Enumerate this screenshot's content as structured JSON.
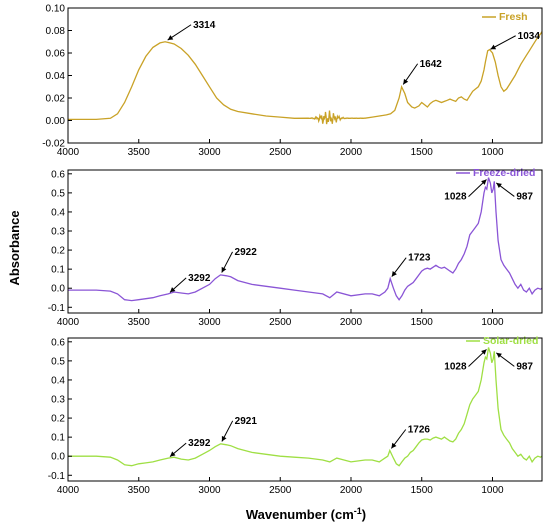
{
  "chart_data": [
    {
      "type": "line",
      "panel": "top",
      "legend": "Fresh",
      "color": "#c9a227",
      "xlim": [
        4000,
        650
      ],
      "ylim": [
        -0.02,
        0.1
      ],
      "xticks": [
        "4000",
        "3500",
        "3000",
        "2500",
        "2000",
        "1500",
        "1000"
      ],
      "yticks": [
        "-0.02",
        "0.00",
        "0.02",
        "0.04",
        "0.06",
        "0.08",
        "0.10"
      ],
      "ytick_values": [
        -0.02,
        0.0,
        0.02,
        0.04,
        0.06,
        0.08,
        0.1
      ],
      "series": [
        {
          "x": [
            4000,
            3800,
            3700,
            3650,
            3600,
            3550,
            3500,
            3450,
            3400,
            3350,
            3314,
            3280,
            3250,
            3200,
            3150,
            3100,
            3050,
            3000,
            2950,
            2900,
            2850,
            2800,
            2700,
            2600,
            2500,
            2400,
            2300,
            2200,
            2150,
            2100,
            2050,
            2000,
            1950,
            1900,
            1850,
            1800,
            1750,
            1720,
            1690,
            1660,
            1642,
            1620,
            1600,
            1570,
            1550,
            1520,
            1500,
            1480,
            1460,
            1440,
            1420,
            1400,
            1380,
            1360,
            1340,
            1320,
            1300,
            1280,
            1260,
            1240,
            1220,
            1200,
            1180,
            1160,
            1140,
            1120,
            1100,
            1080,
            1060,
            1050,
            1034,
            1020,
            1000,
            980,
            960,
            940,
            920,
            900,
            880,
            860,
            840,
            820,
            800,
            780,
            760,
            740,
            720,
            700,
            680,
            660,
            650
          ],
          "y": [
            0.001,
            0.001,
            0.002,
            0.006,
            0.016,
            0.03,
            0.045,
            0.057,
            0.065,
            0.069,
            0.07,
            0.069,
            0.068,
            0.064,
            0.058,
            0.05,
            0.04,
            0.03,
            0.02,
            0.014,
            0.01,
            0.008,
            0.006,
            0.004,
            0.003,
            0.002,
            0.002,
            0.002,
            0.002,
            0.002,
            0.002,
            0.002,
            0.002,
            0.003,
            0.003,
            0.004,
            0.005,
            0.006,
            0.009,
            0.02,
            0.03,
            0.024,
            0.016,
            0.012,
            0.011,
            0.013,
            0.016,
            0.014,
            0.012,
            0.015,
            0.017,
            0.018,
            0.017,
            0.016,
            0.017,
            0.018,
            0.019,
            0.018,
            0.017,
            0.02,
            0.021,
            0.019,
            0.018,
            0.022,
            0.026,
            0.028,
            0.03,
            0.035,
            0.045,
            0.052,
            0.062,
            0.063,
            0.06,
            0.052,
            0.04,
            0.03,
            0.026,
            0.028,
            0.032,
            0.036,
            0.04,
            0.045,
            0.05,
            0.054,
            0.058,
            0.062,
            0.066,
            0.07,
            0.074,
            0.077,
            0.079
          ]
        }
      ],
      "noise": {
        "from": 2300,
        "to": 1900,
        "center": 2160,
        "amp": 0.007
      },
      "annotations": [
        {
          "text": "3314",
          "x": 3314,
          "y": 0.07
        },
        {
          "text": "1642",
          "x": 1642,
          "y": 0.03
        },
        {
          "text": "1034",
          "x": 1034,
          "y": 0.062
        }
      ]
    },
    {
      "type": "line",
      "panel": "middle",
      "legend": "Freeze-dried",
      "color": "#8a55d6",
      "xlim": [
        4000,
        650
      ],
      "ylim": [
        -0.13,
        0.62
      ],
      "xticks": [
        "4000",
        "3500",
        "3000",
        "2500",
        "2000",
        "1500",
        "1000"
      ],
      "yticks": [
        "-0.1",
        "0.0",
        "0.1",
        "0.2",
        "0.3",
        "0.4",
        "0.5",
        "0.6"
      ],
      "ytick_values": [
        -0.1,
        0.0,
        0.1,
        0.2,
        0.3,
        0.4,
        0.5,
        0.6
      ],
      "series": [
        {
          "x": [
            4000,
            3800,
            3700,
            3650,
            3600,
            3550,
            3500,
            3450,
            3400,
            3350,
            3292,
            3250,
            3200,
            3150,
            3100,
            3050,
            3000,
            2960,
            2922,
            2880,
            2850,
            2800,
            2700,
            2600,
            2500,
            2400,
            2300,
            2200,
            2150,
            2100,
            2000,
            1900,
            1850,
            1800,
            1760,
            1740,
            1723,
            1700,
            1680,
            1660,
            1640,
            1620,
            1600,
            1580,
            1560,
            1540,
            1520,
            1500,
            1480,
            1460,
            1440,
            1420,
            1400,
            1380,
            1360,
            1340,
            1320,
            1300,
            1280,
            1260,
            1240,
            1220,
            1200,
            1180,
            1160,
            1140,
            1120,
            1100,
            1080,
            1060,
            1050,
            1040,
            1028,
            1015,
            1005,
            995,
            987,
            975,
            960,
            940,
            920,
            900,
            880,
            860,
            840,
            820,
            800,
            780,
            760,
            740,
            720,
            700,
            680,
            660,
            650
          ],
          "y": [
            -0.01,
            -0.01,
            -0.015,
            -0.03,
            -0.06,
            -0.065,
            -0.06,
            -0.055,
            -0.05,
            -0.04,
            -0.03,
            -0.02,
            -0.025,
            -0.03,
            -0.02,
            0.0,
            0.02,
            0.05,
            0.07,
            0.065,
            0.06,
            0.04,
            0.02,
            0.01,
            0.0,
            -0.01,
            -0.02,
            -0.03,
            -0.05,
            -0.02,
            -0.04,
            -0.03,
            -0.03,
            -0.04,
            -0.02,
            0.0,
            0.05,
            0.0,
            -0.04,
            -0.06,
            -0.04,
            -0.01,
            0.01,
            0.02,
            0.03,
            0.05,
            0.07,
            0.09,
            0.1,
            0.105,
            0.1,
            0.11,
            0.12,
            0.11,
            0.105,
            0.11,
            0.1,
            0.09,
            0.08,
            0.1,
            0.13,
            0.15,
            0.18,
            0.22,
            0.28,
            0.3,
            0.32,
            0.34,
            0.4,
            0.5,
            0.53,
            0.52,
            0.58,
            0.55,
            0.5,
            0.52,
            0.56,
            0.4,
            0.25,
            0.15,
            0.12,
            0.1,
            0.08,
            0.05,
            0.02,
            0.0,
            0.02,
            -0.01,
            -0.02,
            0.0,
            -0.03,
            -0.01,
            0.0,
            -0.005,
            0.0
          ]
        }
      ],
      "annotations": [
        {
          "text": "3292",
          "x": 3292,
          "y": -0.03
        },
        {
          "text": "2922",
          "x": 2922,
          "y": 0.07
        },
        {
          "text": "1723",
          "x": 1723,
          "y": 0.05
        },
        {
          "text": "1028",
          "x": 1028,
          "y": 0.58
        },
        {
          "text": "987",
          "x": 987,
          "y": 0.56
        }
      ]
    },
    {
      "type": "line",
      "panel": "bottom",
      "legend": "Solar-dried",
      "color": "#9fdf44",
      "xlim": [
        4000,
        650
      ],
      "ylim": [
        -0.13,
        0.62
      ],
      "xticks": [
        "4000",
        "3500",
        "3000",
        "2500",
        "2000",
        "1500",
        "1000"
      ],
      "yticks": [
        "-0.1",
        "0.0",
        "0.1",
        "0.2",
        "0.3",
        "0.4",
        "0.5",
        "0.6"
      ],
      "ytick_values": [
        -0.1,
        0.0,
        0.1,
        0.2,
        0.3,
        0.4,
        0.5,
        0.6
      ],
      "series": [
        {
          "x": [
            4000,
            3800,
            3700,
            3650,
            3600,
            3550,
            3500,
            3450,
            3400,
            3350,
            3292,
            3250,
            3200,
            3150,
            3100,
            3050,
            3000,
            2960,
            2921,
            2880,
            2850,
            2800,
            2700,
            2600,
            2500,
            2400,
            2300,
            2200,
            2150,
            2100,
            2000,
            1900,
            1850,
            1800,
            1760,
            1740,
            1726,
            1700,
            1680,
            1660,
            1640,
            1620,
            1600,
            1580,
            1560,
            1540,
            1520,
            1500,
            1480,
            1460,
            1440,
            1420,
            1400,
            1380,
            1360,
            1340,
            1320,
            1300,
            1280,
            1260,
            1240,
            1220,
            1200,
            1180,
            1160,
            1140,
            1120,
            1100,
            1080,
            1060,
            1050,
            1040,
            1028,
            1015,
            1005,
            995,
            987,
            975,
            960,
            940,
            920,
            900,
            880,
            860,
            840,
            820,
            800,
            780,
            760,
            740,
            720,
            700,
            680,
            660,
            650
          ],
          "y": [
            0.0,
            0.0,
            -0.005,
            -0.02,
            -0.045,
            -0.05,
            -0.04,
            -0.035,
            -0.03,
            -0.02,
            -0.01,
            -0.005,
            -0.015,
            -0.02,
            -0.01,
            0.01,
            0.03,
            0.05,
            0.065,
            0.06,
            0.055,
            0.04,
            0.02,
            0.01,
            0.0,
            -0.005,
            -0.01,
            -0.02,
            -0.03,
            -0.01,
            -0.03,
            -0.02,
            -0.02,
            -0.03,
            -0.01,
            0.0,
            0.03,
            -0.01,
            -0.04,
            -0.05,
            -0.03,
            -0.01,
            0.0,
            0.02,
            0.03,
            0.05,
            0.07,
            0.085,
            0.09,
            0.09,
            0.085,
            0.095,
            0.1,
            0.095,
            0.09,
            0.1,
            0.09,
            0.08,
            0.075,
            0.09,
            0.12,
            0.14,
            0.17,
            0.22,
            0.27,
            0.3,
            0.32,
            0.34,
            0.4,
            0.49,
            0.52,
            0.51,
            0.57,
            0.54,
            0.49,
            0.51,
            0.55,
            0.4,
            0.25,
            0.14,
            0.11,
            0.09,
            0.07,
            0.04,
            0.02,
            0.0,
            0.01,
            -0.01,
            -0.02,
            0.0,
            -0.03,
            -0.01,
            0.0,
            -0.005,
            0.0
          ]
        }
      ],
      "annotations": [
        {
          "text": "3292",
          "x": 3292,
          "y": -0.01
        },
        {
          "text": "2921",
          "x": 2921,
          "y": 0.065
        },
        {
          "text": "1726",
          "x": 1726,
          "y": 0.03
        },
        {
          "text": "1028",
          "x": 1028,
          "y": 0.57
        },
        {
          "text": "987",
          "x": 987,
          "y": 0.55
        }
      ]
    }
  ],
  "xlabel_prefix": "Wavenumber (cm",
  "xlabel_sup": "-1",
  "xlabel_suffix": ")",
  "ylabel": "Absorbance"
}
